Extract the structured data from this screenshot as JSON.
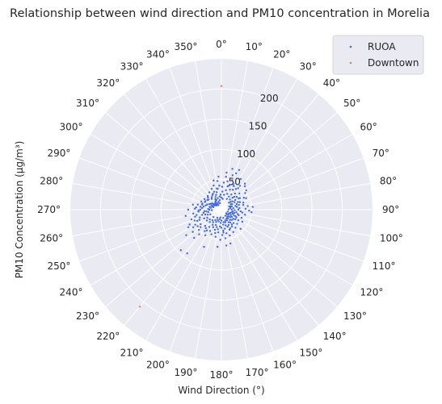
{
  "chart_data": {
    "type": "scatter",
    "projection": "polar",
    "title": "Relationship between wind direction and PM10 concentration in Morelia",
    "xlabel": "Wind Direction (°)",
    "ylabel": "PM10 Concentration (μg/m³)",
    "theta_zero": "north",
    "theta_direction": "clockwise",
    "theta_ticks": [
      "0°",
      "10°",
      "20°",
      "30°",
      "40°",
      "50°",
      "60°",
      "70°",
      "80°",
      "90°",
      "100°",
      "110°",
      "120°",
      "130°",
      "140°",
      "150°",
      "160°",
      "170°",
      "180°",
      "190°",
      "200°",
      "210°",
      "220°",
      "230°",
      "240°",
      "250°",
      "260°",
      "270°",
      "280°",
      "290°",
      "300°",
      "310°",
      "320°",
      "330°",
      "340°",
      "350°"
    ],
    "r_ticks": [
      50,
      100,
      150,
      200
    ],
    "r_tick_labels": [
      "50",
      "100",
      "150",
      "200"
    ],
    "rlim": [
      0,
      250
    ],
    "r_label_angle": 22.5,
    "grid": true,
    "legend_position": "top-right",
    "colors": {
      "background": "#eaeaf2",
      "grid": "#ffffff",
      "RUOA": "#4169e1",
      "Downtown": "#dd8452"
    },
    "series": [
      {
        "name": "RUOA",
        "cluster_note_points": "dense cloud near center",
        "points": [
          [
            5,
            45
          ],
          [
            12,
            48
          ],
          [
            20,
            52
          ],
          [
            25,
            46
          ],
          [
            15,
            40
          ],
          [
            30,
            38
          ],
          [
            35,
            42
          ],
          [
            40,
            35
          ],
          [
            45,
            30
          ],
          [
            50,
            33
          ],
          [
            55,
            28
          ],
          [
            60,
            25
          ],
          [
            65,
            30
          ],
          [
            70,
            27
          ],
          [
            75,
            24
          ],
          [
            80,
            26
          ],
          [
            85,
            30
          ],
          [
            90,
            28
          ],
          [
            95,
            32
          ],
          [
            100,
            25
          ],
          [
            105,
            22
          ],
          [
            110,
            20
          ],
          [
            115,
            23
          ],
          [
            120,
            18
          ],
          [
            125,
            21
          ],
          [
            130,
            19
          ],
          [
            135,
            24
          ],
          [
            140,
            22
          ],
          [
            145,
            26
          ],
          [
            150,
            24
          ],
          [
            155,
            28
          ],
          [
            160,
            30
          ],
          [
            165,
            27
          ],
          [
            170,
            32
          ],
          [
            175,
            35
          ],
          [
            180,
            30
          ],
          [
            185,
            28
          ],
          [
            190,
            33
          ],
          [
            195,
            30
          ],
          [
            200,
            27
          ],
          [
            205,
            32
          ],
          [
            210,
            29
          ],
          [
            215,
            35
          ],
          [
            220,
            40
          ],
          [
            225,
            38
          ],
          [
            230,
            45
          ],
          [
            235,
            42
          ],
          [
            240,
            50
          ],
          [
            245,
            44
          ],
          [
            250,
            38
          ],
          [
            255,
            33
          ],
          [
            260,
            30
          ],
          [
            265,
            28
          ],
          [
            270,
            35
          ],
          [
            275,
            32
          ],
          [
            280,
            30
          ],
          [
            285,
            27
          ],
          [
            290,
            25
          ],
          [
            295,
            22
          ],
          [
            300,
            20
          ],
          [
            305,
            18
          ],
          [
            310,
            15
          ],
          [
            315,
            12
          ],
          [
            320,
            14
          ],
          [
            325,
            17
          ],
          [
            330,
            20
          ],
          [
            335,
            23
          ],
          [
            340,
            26
          ],
          [
            345,
            30
          ],
          [
            350,
            35
          ],
          [
            355,
            40
          ],
          [
            8,
            55
          ],
          [
            18,
            60
          ],
          [
            28,
            50
          ],
          [
            38,
            45
          ],
          [
            48,
            40
          ],
          [
            58,
            36
          ],
          [
            68,
            33
          ],
          [
            78,
            37
          ],
          [
            88,
            40
          ],
          [
            98,
            35
          ],
          [
            108,
            30
          ],
          [
            118,
            28
          ],
          [
            128,
            25
          ],
          [
            138,
            30
          ],
          [
            148,
            33
          ],
          [
            158,
            36
          ],
          [
            168,
            40
          ],
          [
            178,
            42
          ],
          [
            188,
            38
          ],
          [
            198,
            35
          ],
          [
            208,
            40
          ],
          [
            218,
            45
          ],
          [
            228,
            50
          ],
          [
            238,
            55
          ],
          [
            248,
            48
          ],
          [
            258,
            42
          ],
          [
            268,
            38
          ],
          [
            278,
            35
          ],
          [
            288,
            33
          ],
          [
            298,
            30
          ],
          [
            308,
            27
          ],
          [
            318,
            24
          ],
          [
            328,
            28
          ],
          [
            338,
            32
          ],
          [
            348,
            36
          ],
          [
            3,
            30
          ],
          [
            13,
            33
          ],
          [
            23,
            36
          ],
          [
            33,
            30
          ],
          [
            43,
            27
          ],
          [
            53,
            23
          ],
          [
            63,
            20
          ],
          [
            73,
            18
          ],
          [
            83,
            20
          ],
          [
            93,
            22
          ],
          [
            103,
            18
          ],
          [
            113,
            15
          ],
          [
            123,
            14
          ],
          [
            133,
            16
          ],
          [
            143,
            18
          ],
          [
            153,
            20
          ],
          [
            163,
            22
          ],
          [
            173,
            25
          ],
          [
            183,
            22
          ],
          [
            193,
            20
          ],
          [
            203,
            22
          ],
          [
            213,
            25
          ],
          [
            223,
            28
          ],
          [
            233,
            30
          ],
          [
            243,
            32
          ],
          [
            253,
            28
          ],
          [
            263,
            25
          ],
          [
            273,
            22
          ],
          [
            283,
            20
          ],
          [
            293,
            18
          ],
          [
            303,
            16
          ],
          [
            313,
            14
          ],
          [
            323,
            16
          ],
          [
            333,
            18
          ],
          [
            343,
            20
          ],
          [
            353,
            22
          ],
          [
            10,
            25
          ],
          [
            20,
            28
          ],
          [
            30,
            25
          ],
          [
            40,
            22
          ],
          [
            50,
            20
          ],
          [
            60,
            18
          ],
          [
            70,
            16
          ],
          [
            80,
            15
          ],
          [
            90,
            17
          ],
          [
            100,
            19
          ],
          [
            110,
            16
          ],
          [
            120,
            14
          ],
          [
            130,
            12
          ],
          [
            140,
            15
          ],
          [
            150,
            17
          ],
          [
            160,
            19
          ],
          [
            170,
            21
          ],
          [
            180,
            18
          ],
          [
            190,
            16
          ],
          [
            200,
            18
          ],
          [
            210,
            20
          ],
          [
            220,
            23
          ],
          [
            230,
            25
          ],
          [
            240,
            27
          ],
          [
            250,
            24
          ],
          [
            260,
            22
          ],
          [
            270,
            20
          ],
          [
            280,
            18
          ],
          [
            290,
            16
          ],
          [
            300,
            14
          ],
          [
            310,
            12
          ],
          [
            320,
            10
          ],
          [
            330,
            12
          ],
          [
            340,
            14
          ],
          [
            350,
            16
          ],
          [
            0,
            20
          ],
          [
            357,
            25
          ],
          [
            7,
            18
          ],
          [
            27,
            20
          ],
          [
            47,
            17
          ],
          [
            67,
            14
          ],
          [
            87,
            12
          ],
          [
            107,
            11
          ],
          [
            127,
            10
          ],
          [
            147,
            12
          ],
          [
            167,
            14
          ],
          [
            187,
            13
          ],
          [
            207,
            15
          ],
          [
            227,
            18
          ],
          [
            247,
            20
          ],
          [
            267,
            16
          ],
          [
            287,
            14
          ],
          [
            307,
            11
          ],
          [
            327,
            9
          ],
          [
            347,
            11
          ],
          [
            15,
            70
          ],
          [
            22,
            65
          ],
          [
            32,
            60
          ],
          [
            42,
            58
          ],
          [
            52,
            52
          ],
          [
            24,
            72
          ],
          [
            2,
            38
          ],
          [
            352,
            48
          ],
          [
            342,
            42
          ],
          [
            62,
            42
          ],
          [
            82,
            44
          ],
          [
            92,
            46
          ],
          [
            72,
            38
          ],
          [
            102,
            40
          ],
          [
            112,
            36
          ],
          [
            122,
            33
          ],
          [
            132,
            35
          ],
          [
            142,
            38
          ],
          [
            152,
            42
          ],
          [
            162,
            45
          ],
          [
            172,
            48
          ],
          [
            182,
            50
          ],
          [
            192,
            46
          ],
          [
            202,
            44
          ],
          [
            212,
            50
          ],
          [
            222,
            55
          ],
          [
            232,
            60
          ],
          [
            242,
            62
          ],
          [
            252,
            52
          ],
          [
            262,
            47
          ],
          [
            272,
            44
          ],
          [
            282,
            40
          ],
          [
            292,
            36
          ],
          [
            302,
            33
          ],
          [
            312,
            30
          ],
          [
            322,
            26
          ],
          [
            332,
            30
          ],
          [
            234,
            72
          ],
          [
            224,
            65
          ],
          [
            205,
            68
          ],
          [
            186,
            62
          ],
          [
            270,
            55
          ],
          [
            260,
            60
          ],
          [
            225,
            95
          ],
          [
            218,
            92
          ],
          [
            245,
            58
          ],
          [
            280,
            48
          ],
          [
            95,
            50
          ],
          [
            85,
            52
          ],
          [
            120,
            40
          ],
          [
            135,
            45
          ],
          [
            165,
            58
          ],
          [
            172,
            60
          ],
          [
            45,
            55
          ],
          [
            55,
            48
          ],
          [
            65,
            45
          ],
          [
            18,
            42
          ],
          [
            28,
            44
          ],
          [
            38,
            50
          ],
          [
            8,
            62
          ],
          [
            355,
            55
          ],
          [
            345,
            50
          ],
          [
            335,
            38
          ],
          [
            325,
            35
          ],
          [
            315,
            32
          ],
          [
            305,
            28
          ],
          [
            295,
            30
          ],
          [
            285,
            33
          ],
          [
            275,
            42
          ],
          [
            265,
            38
          ],
          [
            255,
            45
          ],
          [
            245,
            40
          ],
          [
            235,
            48
          ],
          [
            215,
            42
          ],
          [
            195,
            40
          ],
          [
            175,
            38
          ],
          [
            155,
            34
          ],
          [
            145,
            30
          ],
          [
            125,
            28
          ],
          [
            115,
            26
          ],
          [
            105,
            28
          ],
          [
            75,
            30
          ],
          [
            57,
            34
          ]
        ]
      },
      {
        "name": "Downtown",
        "points": [
          [
            0,
            205
          ],
          [
            220,
            210
          ]
        ]
      }
    ]
  }
}
